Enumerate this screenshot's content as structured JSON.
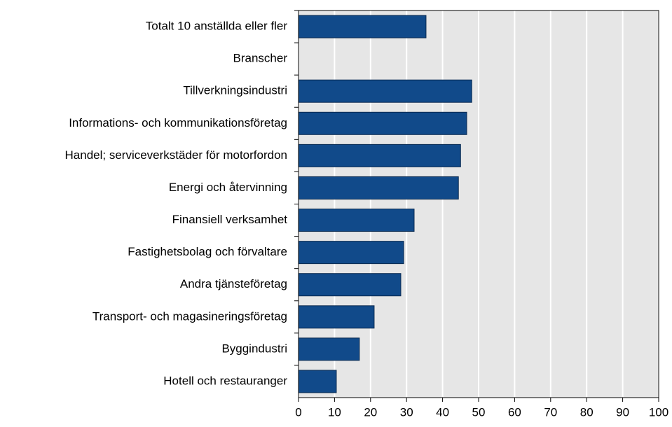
{
  "chart_data": {
    "type": "barh",
    "categories": [
      "Totalt 10 anställda eller fler",
      "Branscher",
      "Tillverkningsindustri",
      "Informations- och kommunikationsföretag",
      "Handel; serviceverkstäder för motorfordon",
      "Energi och återvinning",
      "Finansiell verksamhet",
      "Fastighetsbolag och förvaltare",
      "Andra tjänsteföretag",
      "Transport- och magasineringsföretag",
      "Byggindustri",
      "Hotell och restauranger"
    ],
    "values": [
      35.4,
      null,
      48.1,
      46.7,
      45,
      44.4,
      32.1,
      29.2,
      28.4,
      21,
      16.9,
      10.5
    ],
    "color": "#114a8a",
    "xlim": [
      0,
      100
    ],
    "xticks": [
      0,
      10,
      20,
      30,
      40,
      50,
      60,
      70,
      80,
      90,
      100
    ],
    "grid": true
  }
}
